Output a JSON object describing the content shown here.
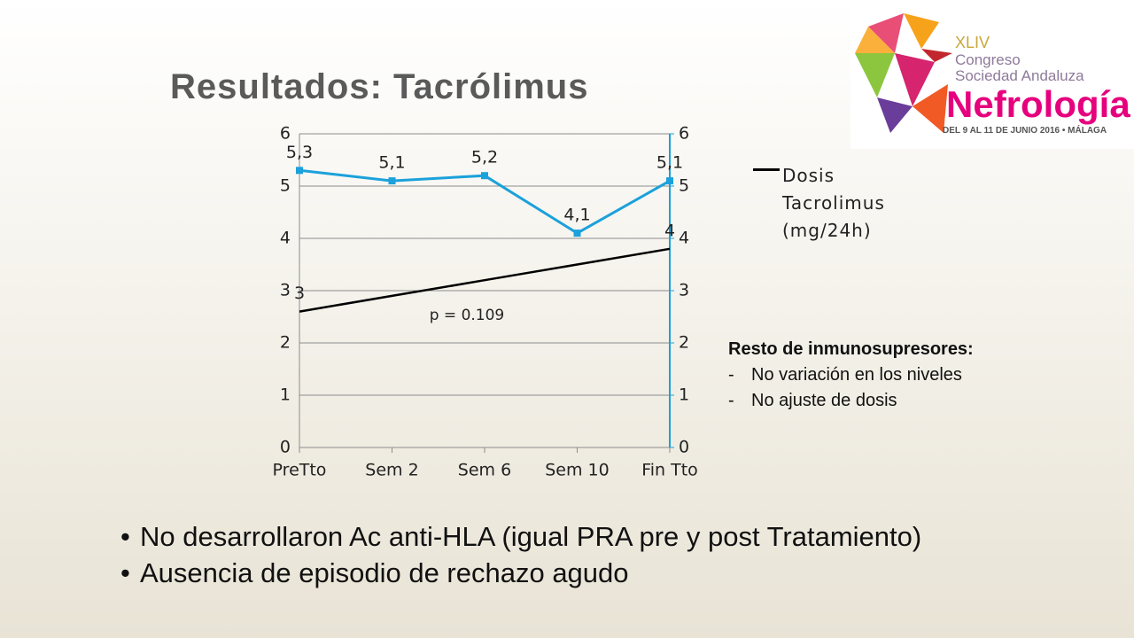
{
  "slide": {
    "bullets": [
      "No desarrollaron Ac anti-HLA (igual PRA pre y post Tratamiento)",
      "Ausencia de episodio de rechazo agudo"
    ],
    "side_note": {
      "heading": "Resto de inmunosupresores:",
      "items": [
        "No variación en los niveles",
        "No ajuste de dosis"
      ]
    },
    "logo": {
      "edition": "XLIV",
      "line1": "Congreso",
      "line2": "Sociedad Andaluza",
      "name": "Nefrología",
      "dates": "DEL 9 AL 11 DE JUNIO 2016 • MÁLAGA"
    }
  },
  "chart_data": {
    "type": "line",
    "title": "Resultados: Tacrólimus",
    "categories": [
      "PreTto",
      "Sem 2",
      "Sem 6",
      "Sem 10",
      "Fin Tto"
    ],
    "series": [
      {
        "name": "Dosis Tacrolimus (mg/24h)",
        "color": "#000000",
        "values": [
          2.6,
          2.9,
          3.2,
          3.5,
          3.8
        ],
        "value_labels": [
          "3",
          null,
          null,
          null,
          "4"
        ]
      },
      {
        "color": "#1ba1db",
        "axis": "y2",
        "values": [
          5.3,
          5.1,
          5.2,
          4.1,
          5.1
        ],
        "value_labels": [
          "5,3",
          "5,1",
          "5,2",
          "4,1",
          "5,1"
        ]
      }
    ],
    "ylim": [
      0,
      6
    ],
    "yticks": [
      0,
      1,
      2,
      3,
      4,
      5,
      6
    ],
    "y2lim": [
      0,
      6
    ],
    "y2ticks": [
      0,
      1,
      2,
      3,
      4,
      5,
      6
    ],
    "grid": true,
    "legend": "right",
    "annotations": [
      "p = 0.109"
    ]
  }
}
